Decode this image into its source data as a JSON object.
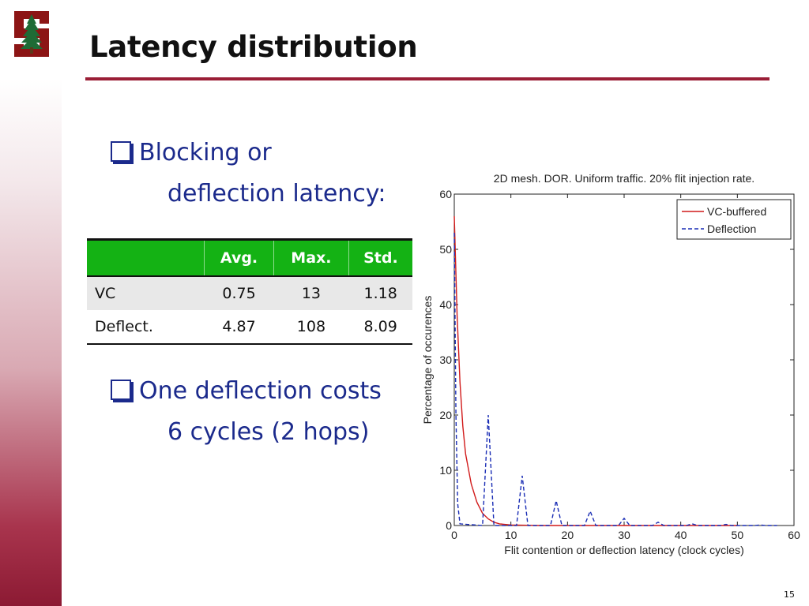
{
  "slide": {
    "title": "Latency distribution",
    "page_number": "15"
  },
  "bullets": [
    {
      "lines": [
        "Blocking or",
        "deflection latency:"
      ]
    },
    {
      "lines": [
        "One deflection costs",
        "6 cycles (2 hops)"
      ]
    }
  ],
  "table": {
    "headers": [
      "",
      "Avg.",
      "Max.",
      "Std."
    ],
    "rows": [
      [
        "VC",
        "0.75",
        "13",
        "1.18"
      ],
      [
        "Deflect.",
        "4.87",
        "108",
        "8.09"
      ]
    ]
  },
  "colors": {
    "accent": "#9a1e36",
    "bullet_text": "#1b2a8c",
    "table_header": "#14b214",
    "vc_series": "#d11a1a",
    "deflection_series": "#1a2db5"
  },
  "chart_data": {
    "type": "line",
    "title": "2D mesh. DOR. Uniform traffic. 20% flit injection rate.",
    "xlabel": "Flit contention or deflection latency (clock cycles)",
    "ylabel": "Percentage of occurences",
    "xlim": [
      0,
      60
    ],
    "ylim": [
      0,
      60
    ],
    "xticks": [
      0,
      10,
      20,
      30,
      40,
      50,
      60
    ],
    "yticks": [
      0,
      10,
      20,
      30,
      40,
      50,
      60
    ],
    "legend_position": "top-right",
    "series": [
      {
        "name": "VC-buffered",
        "style": "solid",
        "color": "#d11a1a",
        "x": [
          0,
          0.5,
          1,
          1.5,
          2,
          3,
          4,
          5,
          6,
          7,
          8,
          10,
          12,
          15,
          20,
          25,
          30,
          40,
          50
        ],
        "y": [
          56,
          38,
          26,
          18,
          13,
          7.5,
          4.2,
          2.2,
          1.2,
          0.6,
          0.3,
          0.1,
          0.05,
          0,
          0,
          0,
          0,
          0,
          0
        ]
      },
      {
        "name": "Deflection",
        "style": "dashed",
        "color": "#1a2db5",
        "x": [
          0,
          0.3,
          0.6,
          1,
          5,
          6,
          7,
          11,
          12,
          13,
          17,
          18,
          19,
          23,
          24,
          25,
          29,
          30,
          31,
          35,
          36,
          37,
          41,
          42,
          43,
          47,
          48,
          49,
          53,
          54,
          55,
          57
        ],
        "y": [
          53,
          20,
          4,
          0.3,
          0,
          20,
          0,
          0,
          9,
          0,
          0,
          4.5,
          0,
          0,
          2.6,
          0,
          0,
          1.3,
          0,
          0,
          0.6,
          0,
          0,
          0.3,
          0,
          0,
          0.2,
          0,
          0,
          0.1,
          0,
          0
        ]
      }
    ]
  }
}
